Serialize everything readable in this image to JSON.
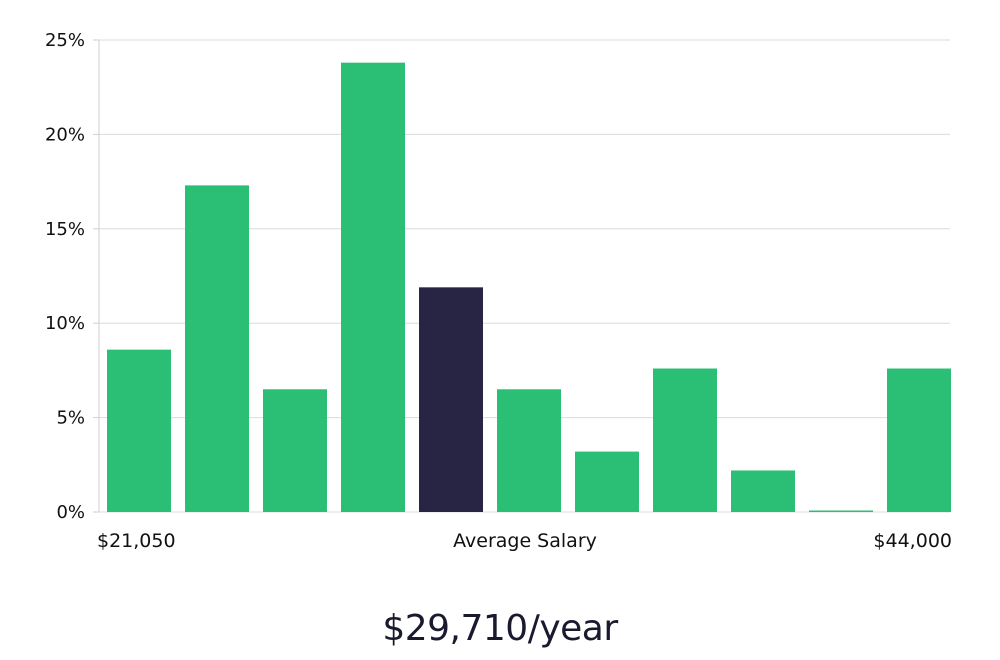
{
  "chart_data": {
    "type": "bar",
    "values": [
      8.6,
      17.3,
      6.5,
      23.8,
      11.9,
      6.5,
      3.2,
      7.6,
      2.2,
      0.05,
      7.6
    ],
    "highlight_index": 4,
    "ylim": [
      0,
      25
    ],
    "y_ticks": [
      "0%",
      "5%",
      "10%",
      "15%",
      "20%",
      "25%"
    ],
    "y_tick_values": [
      0,
      5,
      10,
      15,
      20,
      25
    ],
    "x_min_label": "$21,050",
    "x_center_label": "Average Salary",
    "x_max_label": "$44,000",
    "grid": true
  },
  "salary": {
    "value": "$29,710/year"
  },
  "colors": {
    "bar": "#2bbf75",
    "bar_highlight": "#282444",
    "grid": "#dcdcdc",
    "text": "#111111"
  }
}
